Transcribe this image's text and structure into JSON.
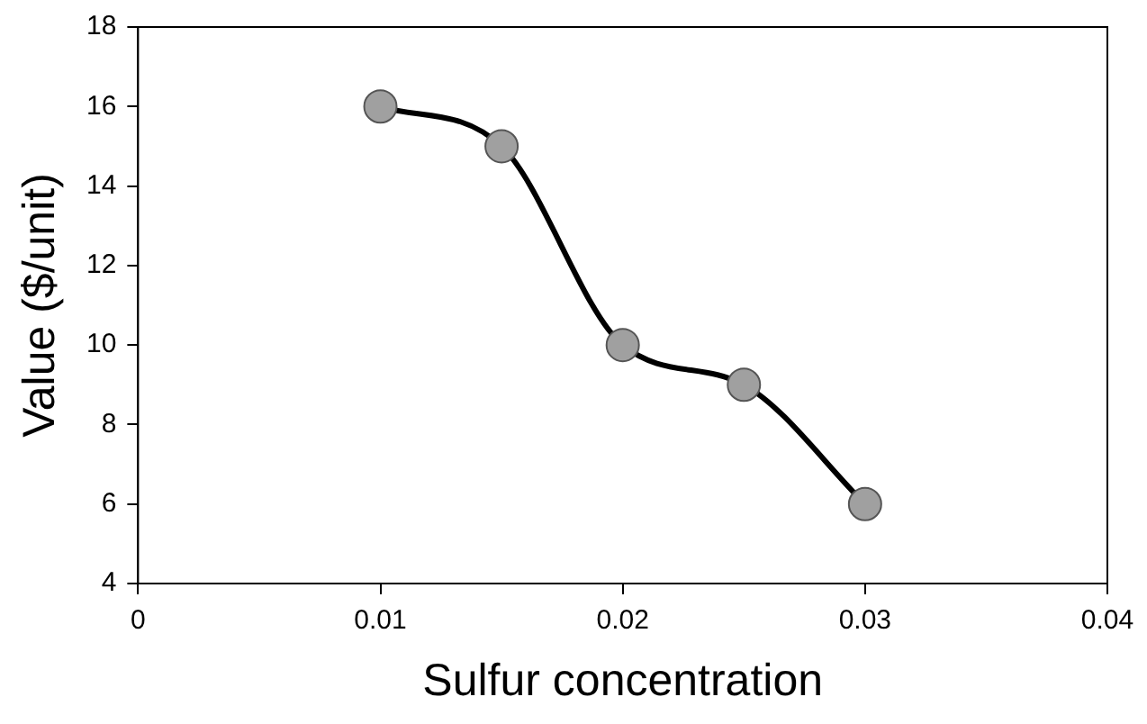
{
  "chart_data": {
    "type": "line",
    "xlabel": "Sulfur concentration",
    "ylabel": "Value ($/unit)",
    "x": [
      0.01,
      0.015,
      0.02,
      0.025,
      0.03
    ],
    "series": [
      {
        "color": "#000000",
        "values": [
          16,
          15,
          10,
          9,
          6
        ]
      }
    ],
    "xlim": [
      0,
      0.04
    ],
    "xticks": [
      0,
      0.01,
      0.02,
      0.03,
      0.04
    ],
    "ylim": [
      4,
      18
    ],
    "yticks": [
      4,
      6,
      8,
      10,
      12,
      14,
      16,
      18
    ],
    "marker": "circle",
    "line_style": "solid",
    "legend": false
  }
}
